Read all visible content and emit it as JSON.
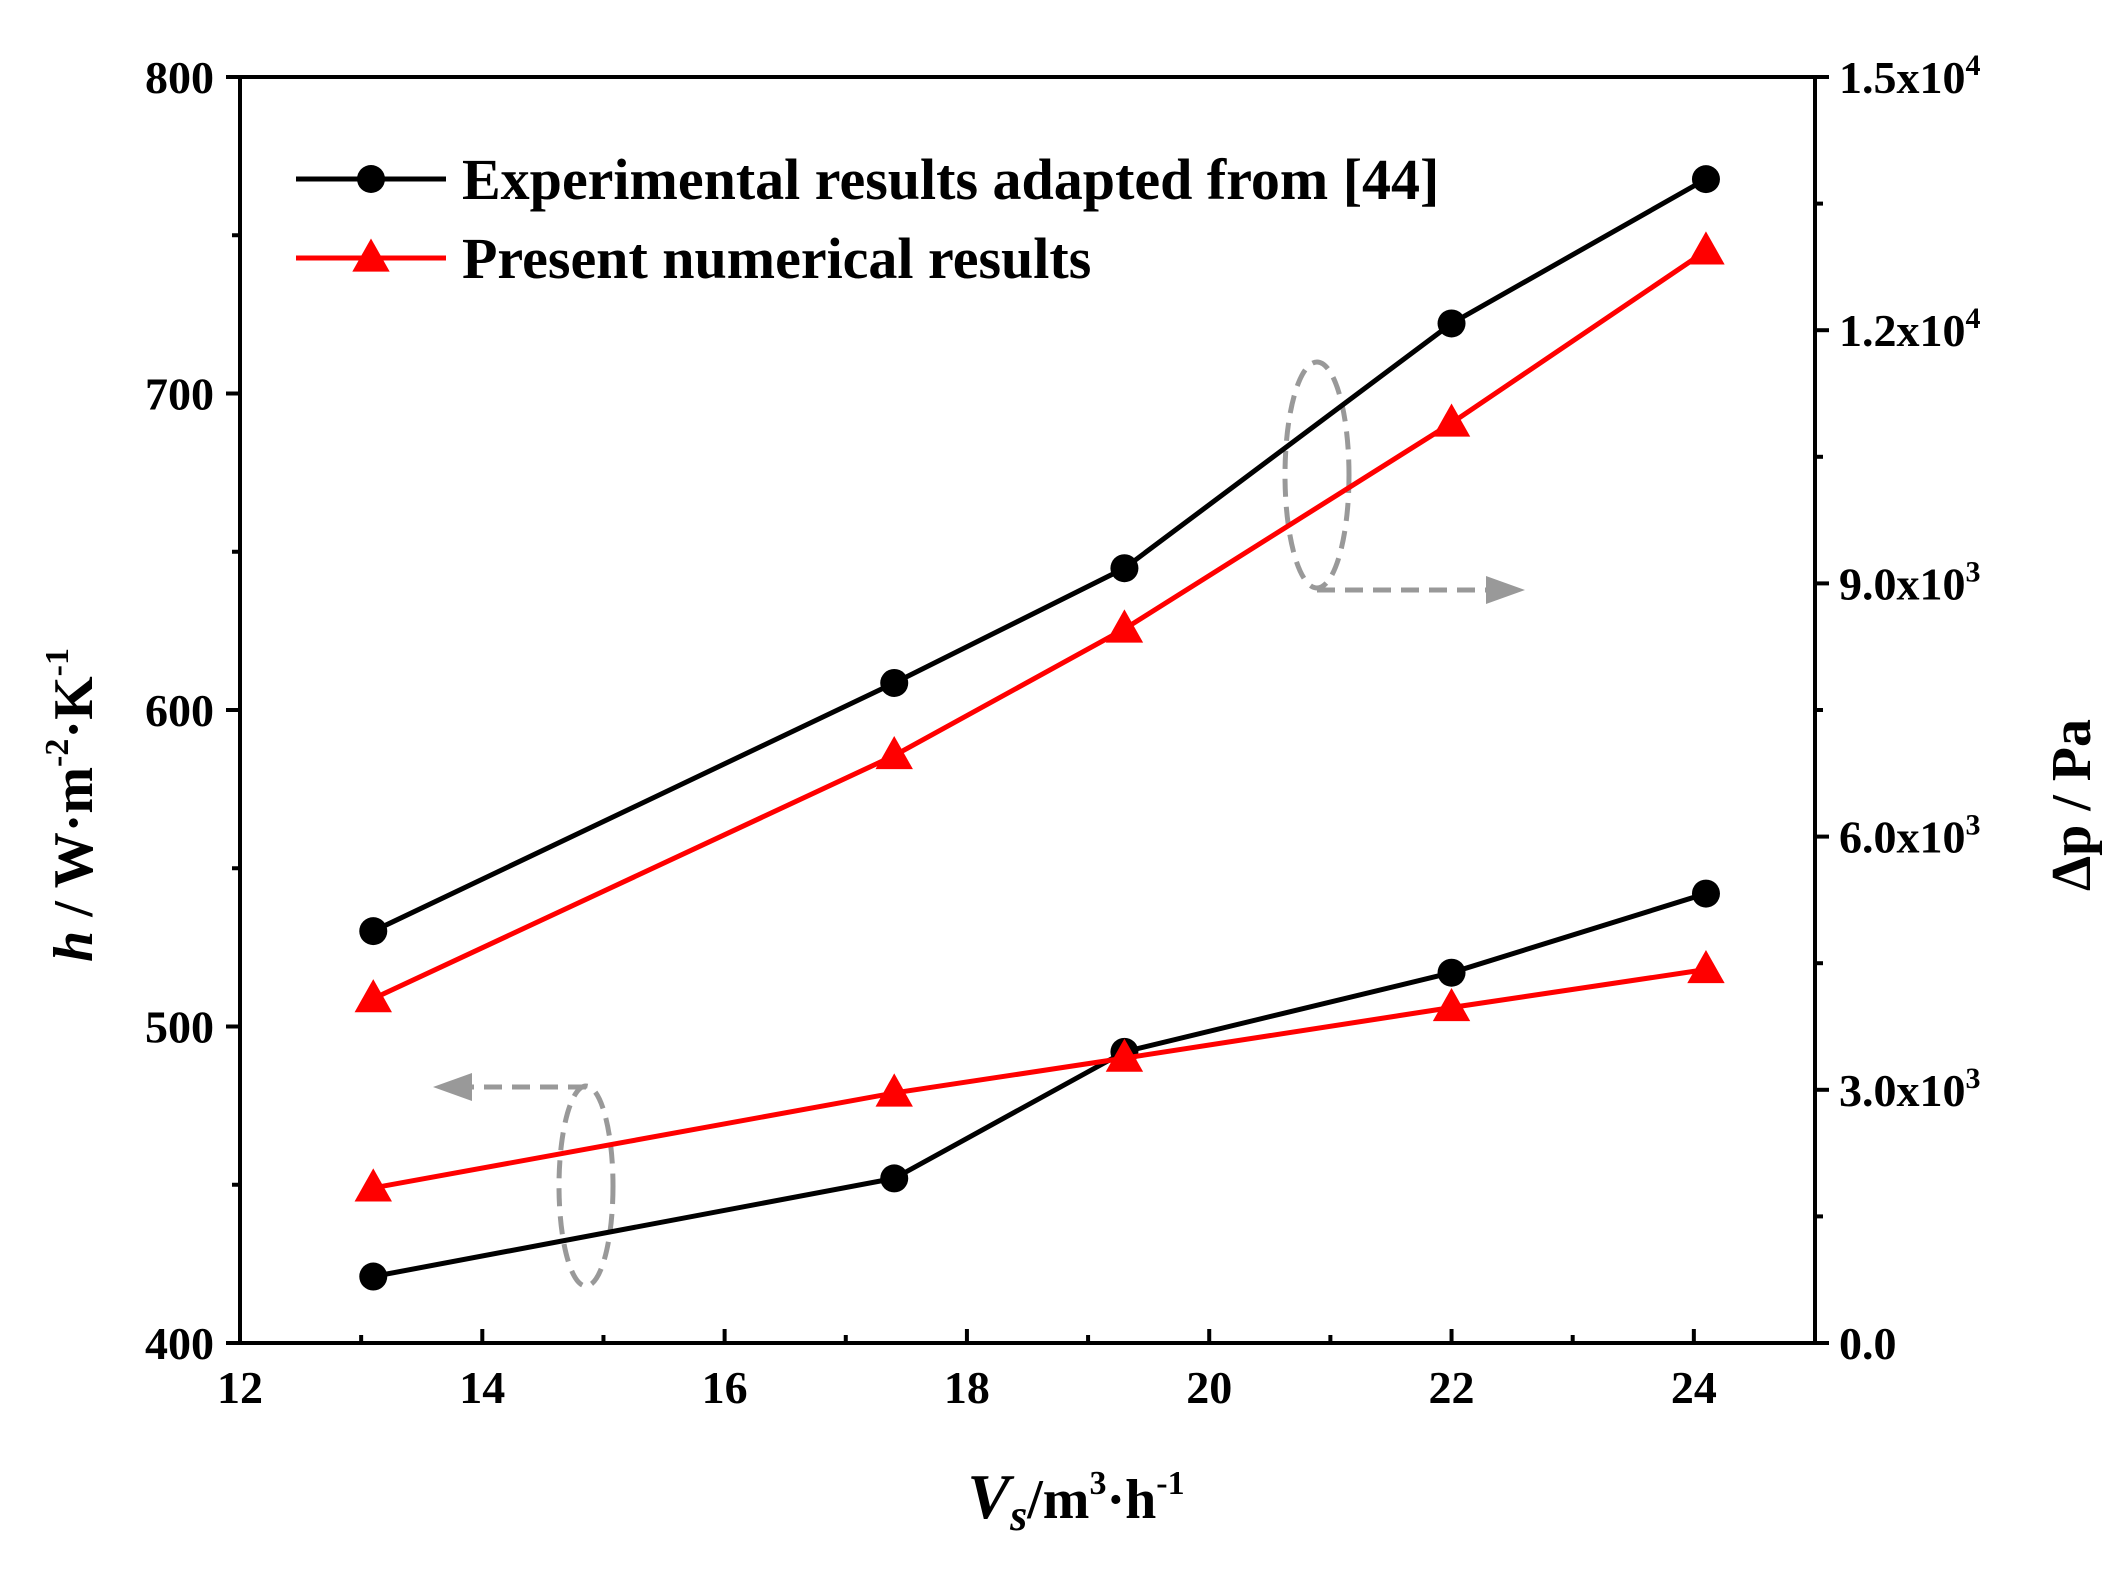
{
  "chart_data": {
    "type": "line",
    "xlabel": {
      "base": "V",
      "sub": "s",
      "rest": "/m",
      "sup1": "3",
      "mid": "·h",
      "sup2": "-1"
    },
    "ylabel_left": {
      "italic": "h",
      "rest": " / W·m",
      "sup1": "-2",
      "mid": "·K",
      "sup2": "-1"
    },
    "ylabel_right": "Δp / Pa",
    "xlim": [
      12,
      25
    ],
    "xticks": [
      12,
      14,
      16,
      18,
      20,
      22,
      24
    ],
    "ylim_left": [
      400,
      800
    ],
    "yticks_left": [
      400,
      500,
      600,
      700,
      800
    ],
    "ylim_right": [
      0,
      15000
    ],
    "yticks_right": [
      {
        "value": 0,
        "label": "0.0",
        "exp": ""
      },
      {
        "value": 3000,
        "label": "3.0x10",
        "exp": "3"
      },
      {
        "value": 6000,
        "label": "6.0x10",
        "exp": "3"
      },
      {
        "value": 9000,
        "label": "9.0x10",
        "exp": "3"
      },
      {
        "value": 12000,
        "label": "1.2x10",
        "exp": "4"
      },
      {
        "value": 15000,
        "label": "1.5x10",
        "exp": "4"
      }
    ],
    "x": [
      13.1,
      17.4,
      19.3,
      22.0,
      24.1
    ],
    "series": [
      {
        "name": "Experimental results adapted from [44]",
        "axis": "left",
        "quantity": "h",
        "marker": "circle",
        "color": "#000000",
        "values": [
          421,
          452,
          492,
          517,
          542
        ]
      },
      {
        "name": "Present numerical results",
        "axis": "left",
        "quantity": "h",
        "marker": "triangle",
        "color": "#ff0000",
        "values": [
          449,
          479,
          490,
          506,
          518
        ]
      },
      {
        "name": "Experimental results adapted from [44]",
        "axis": "right",
        "quantity": "dp",
        "marker": "circle",
        "color": "#000000",
        "values": [
          4880,
          7820,
          9180,
          12080,
          13790
        ]
      },
      {
        "name": "Present numerical results",
        "axis": "right",
        "quantity": "dp",
        "marker": "triangle",
        "color": "#ff0000",
        "values": [
          4080,
          6960,
          8460,
          10900,
          12940
        ]
      }
    ],
    "legend": {
      "position": "top-left",
      "entries": [
        {
          "label": "Experimental results adapted from [44]",
          "marker": "circle",
          "color": "#000000"
        },
        {
          "label": "Present numerical results",
          "marker": "triangle",
          "color": "#ff0000"
        }
      ]
    },
    "annotations": [
      {
        "type": "ellipse-arrow",
        "points_to": "left axis",
        "color": "#999999"
      },
      {
        "type": "ellipse-arrow",
        "points_to": "right axis",
        "color": "#999999"
      }
    ]
  }
}
